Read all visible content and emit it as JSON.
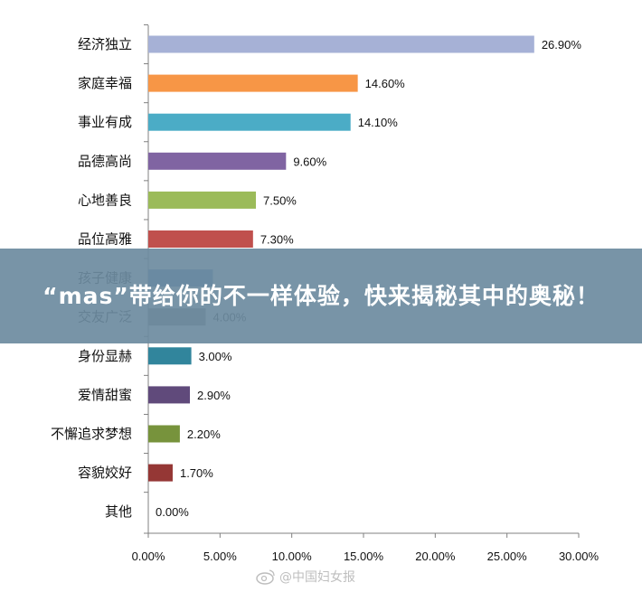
{
  "chart_data": {
    "type": "bar",
    "orientation": "horizontal",
    "categories": [
      "经济独立",
      "家庭幸福",
      "事业有成",
      "品德高尚",
      "心地善良",
      "品位高雅",
      "孩子健康",
      "交友广泛",
      "身份显赫",
      "爱情甜蜜",
      "不懈追求梦想",
      "容貌姣好",
      "其他"
    ],
    "values": [
      26.9,
      14.6,
      14.1,
      9.6,
      7.5,
      7.3,
      4.5,
      4.0,
      3.0,
      2.9,
      2.2,
      1.7,
      0.0
    ],
    "value_labels": [
      "26.90%",
      "14.60%",
      "14.10%",
      "9.60%",
      "7.50%",
      "7.30%",
      "",
      "4.00%",
      "3.00%",
      "2.90%",
      "2.20%",
      "1.70%",
      "0.00%"
    ],
    "colors": [
      "#a6b1d6",
      "#f79646",
      "#4bacc6",
      "#8064a2",
      "#9bbb59",
      "#c0504d",
      "#4f81bd",
      "#7f7f7f",
      "#31859c",
      "#604a7b",
      "#77933c",
      "#953735",
      "#4f81bd"
    ],
    "xlim": [
      0,
      30
    ],
    "x_ticks": [
      0,
      5,
      10,
      15,
      20,
      25,
      30
    ],
    "x_tick_labels": [
      "0.00%",
      "5.00%",
      "10.00%",
      "15.00%",
      "20.00%",
      "25.00%",
      "30.00%"
    ],
    "title": "",
    "xlabel": "",
    "ylabel": "",
    "grid": false,
    "legend": "none"
  },
  "banner": {
    "text": "“mas”带给你的不一样体验，快来揭秘其中的奥秘！"
  },
  "watermark": {
    "text": "@中国妇女报",
    "icon": "weibo-icon"
  }
}
